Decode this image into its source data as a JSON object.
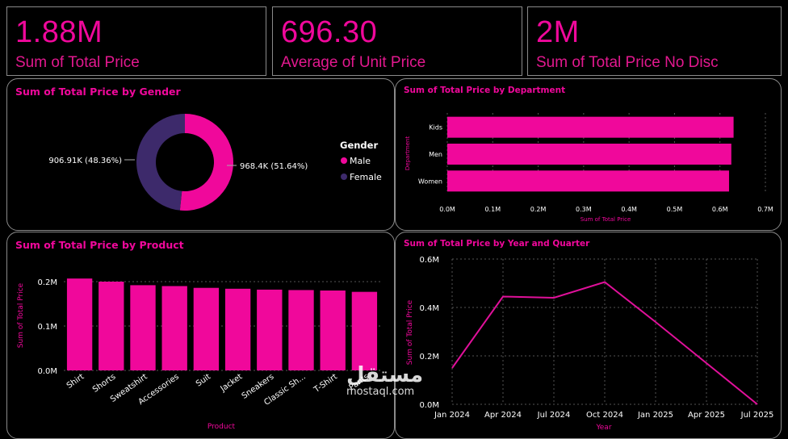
{
  "kpis": [
    {
      "value": "1.88M",
      "label": "Sum of Total Price"
    },
    {
      "value": "696.30",
      "label": "Average of Unit Price"
    },
    {
      "value": "2M",
      "label": "Sum of Total Price No Disc"
    }
  ],
  "watermark": {
    "arabic": "مستقل",
    "latin": "mostaql.com"
  },
  "colors": {
    "accent": "#f0089b",
    "female": "#3d2a6b",
    "border": "#8a8a8a",
    "grid": "#555555"
  },
  "chart_data": [
    {
      "id": "gender",
      "type": "pie",
      "title": "Sum of Total Price by Gender",
      "legend_title": "Gender",
      "legend_position": "right",
      "slices": [
        {
          "label": "Male",
          "value": 968.4,
          "display": "968.4K (51.64%)",
          "color": "#f0089b"
        },
        {
          "label": "Female",
          "value": 906.91,
          "display": "906.91K (48.36%)",
          "color": "#3d2a6b"
        }
      ]
    },
    {
      "id": "department",
      "type": "bar",
      "orientation": "horizontal",
      "title": "Sum of Total Price by Department",
      "xlabel": "Sum of Total Price",
      "ylabel": "Department",
      "categories": [
        "Kids",
        "Men",
        "Women"
      ],
      "values": [
        0.63,
        0.625,
        0.62
      ],
      "xlim": [
        0,
        0.7
      ],
      "xticks": [
        "0.0M",
        "0.1M",
        "0.2M",
        "0.3M",
        "0.4M",
        "0.5M",
        "0.6M",
        "0.7M"
      ],
      "grid": true
    },
    {
      "id": "product",
      "type": "bar",
      "title": "Sum of Total Price by Product",
      "xlabel": "Product",
      "ylabel": "Sum of Total Price",
      "categories": [
        "Shirt",
        "Shorts",
        "Sweatshirt",
        "Accessories",
        "Suit",
        "Jacket",
        "Sneakers",
        "Classic Sh...",
        "T-Shirt",
        "Pants"
      ],
      "values": [
        0.207,
        0.2,
        0.192,
        0.19,
        0.186,
        0.184,
        0.182,
        0.181,
        0.18,
        0.177
      ],
      "ylim": [
        0,
        0.2
      ],
      "yticks": [
        "0.0M",
        "0.1M",
        "0.2M"
      ],
      "grid": true
    },
    {
      "id": "year_quarter",
      "type": "line",
      "title": "Sum of Total Price by Year and Quarter",
      "xlabel": "Year",
      "ylabel": "Sum of Total Price",
      "x": [
        "Jan 2024",
        "Apr 2024",
        "Jul 2024",
        "Oct 2024",
        "Jan 2025",
        "Apr 2025",
        "Jul 2025"
      ],
      "series": [
        {
          "values": [
            0.15,
            0.445,
            0.44,
            0.505,
            0.34,
            0.17,
            0.0
          ]
        }
      ],
      "ylim": [
        0,
        0.6
      ],
      "yticks": [
        "0.0M",
        "0.2M",
        "0.4M",
        "0.6M"
      ],
      "grid": true
    }
  ]
}
